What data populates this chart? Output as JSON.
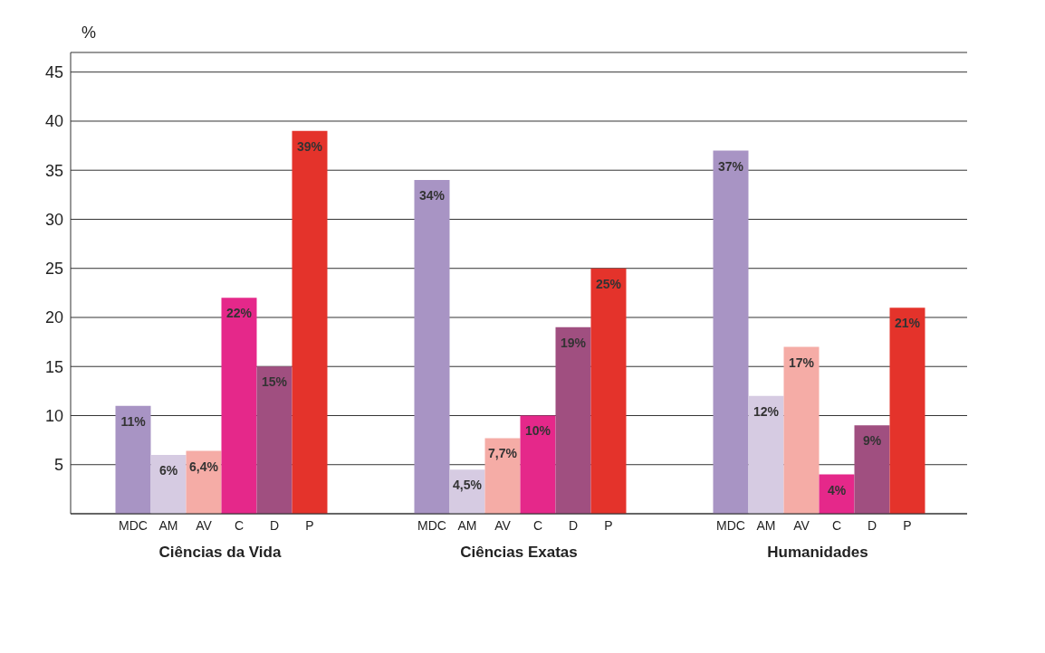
{
  "chart_data": {
    "type": "bar",
    "ylabel": "%",
    "categories": [
      "Ciências da Vida",
      "Ciências Exatas",
      "Humanidades"
    ],
    "series": [
      {
        "name": "MDC",
        "color": "#a894c4",
        "values": [
          11,
          34,
          37
        ],
        "value_labels": [
          "11%",
          "34%",
          "37%"
        ]
      },
      {
        "name": "AM",
        "color": "#d6cbe2",
        "values": [
          6,
          4.5,
          12
        ],
        "value_labels": [
          "6%",
          "4,5%",
          "12%"
        ]
      },
      {
        "name": "AV",
        "color": "#f5aca6",
        "values": [
          6.4,
          7.7,
          17
        ],
        "value_labels": [
          "6,4%",
          "7,7%",
          "17%"
        ]
      },
      {
        "name": "C",
        "color": "#e5288a",
        "values": [
          22,
          10,
          4
        ],
        "value_labels": [
          "22%",
          "10%",
          "4%"
        ]
      },
      {
        "name": "D",
        "color": "#a04f80",
        "values": [
          15,
          19,
          9
        ],
        "value_labels": [
          "15%",
          "19%",
          "9%"
        ]
      },
      {
        "name": "P",
        "color": "#e4332b",
        "values": [
          39,
          25,
          21
        ],
        "value_labels": [
          "39%",
          "25%",
          "21%"
        ]
      }
    ],
    "ylim": [
      0,
      47
    ],
    "yticks": [
      5,
      10,
      15,
      20,
      25,
      30,
      35,
      40,
      45
    ],
    "grid": "y",
    "legend": false
  }
}
